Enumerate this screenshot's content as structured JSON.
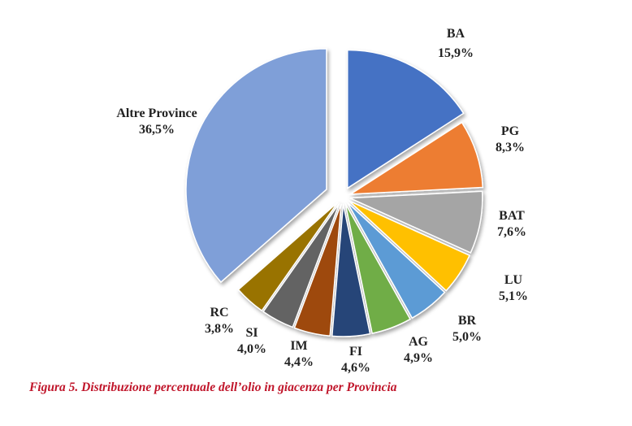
{
  "chart_data": {
    "type": "pie",
    "title": "",
    "slices": [
      {
        "label": "BA",
        "value_label": "15,9%",
        "value": 15.9,
        "color": "#4472c4"
      },
      {
        "label": "PG",
        "value_label": "8,3%",
        "value": 8.3,
        "color": "#ed7d31"
      },
      {
        "label": "BAT",
        "value_label": "7,6%",
        "value": 7.6,
        "color": "#a5a5a5"
      },
      {
        "label": "LU",
        "value_label": "5,1%",
        "value": 5.1,
        "color": "#ffc000"
      },
      {
        "label": "BR",
        "value_label": "5,0%",
        "value": 5.0,
        "color": "#5b9bd5"
      },
      {
        "label": "AG",
        "value_label": "4,9%",
        "value": 4.9,
        "color": "#70ad47"
      },
      {
        "label": "FI",
        "value_label": "4,6%",
        "value": 4.6,
        "color": "#264478"
      },
      {
        "label": "IM",
        "value_label": "4,4%",
        "value": 4.4,
        "color": "#9e480e"
      },
      {
        "label": "SI",
        "value_label": "4,0%",
        "value": 4.0,
        "color": "#636363"
      },
      {
        "label": "RC",
        "value_label": "3,8%",
        "value": 3.8,
        "color": "#997300"
      },
      {
        "label": "Altre Province",
        "value_label": "36,5%",
        "value": 36.5,
        "color": "#7f9fd8"
      }
    ]
  },
  "caption": "Figura 5. Distribuzione percentuale dell’olio in giacenza per Provincia"
}
